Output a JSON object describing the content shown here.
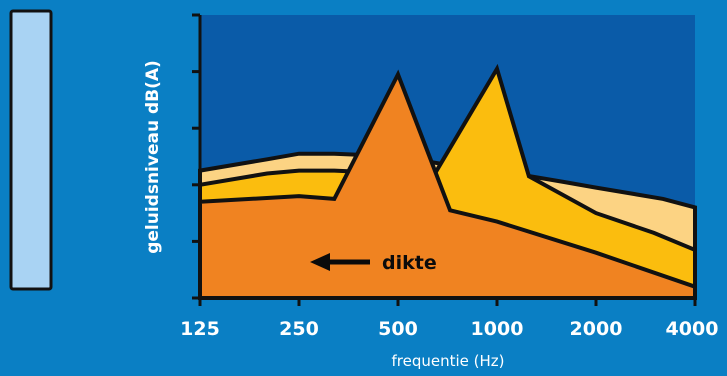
{
  "chart_data": {
    "type": "area",
    "title": "",
    "xlabel": "frequentie (Hz)",
    "ylabel": "geluidsniveau dB(A)",
    "categories": [
      "125",
      "250",
      "500",
      "1000",
      "2000",
      "4000"
    ],
    "ylim": [
      0,
      5
    ],
    "grid": false,
    "series": [
      {
        "x": [
          125,
          200,
          250,
          320,
          500,
          800,
          1000,
          1600,
          2000,
          3200,
          4000
        ],
        "values": [
          2.25,
          2.45,
          2.55,
          2.55,
          2.5,
          2.3,
          2.25,
          2.05,
          1.95,
          1.75,
          1.6
        ]
      },
      {
        "x": [
          125,
          200,
          250,
          320,
          500,
          640,
          1000,
          1250,
          2000,
          3000,
          4000
        ],
        "values": [
          2.0,
          2.2,
          2.25,
          2.25,
          2.2,
          2.15,
          4.05,
          2.15,
          1.5,
          1.15,
          0.85
        ]
      },
      {
        "x": [
          125,
          250,
          320,
          500,
          720,
          1000,
          2000,
          4000
        ],
        "values": [
          1.7,
          1.8,
          1.75,
          3.95,
          1.55,
          1.35,
          0.8,
          0.2
        ]
      }
    ],
    "annotations": [
      {
        "text": "dikte"
      }
    ],
    "colors": {
      "background": "#0a7fc4",
      "plot_background": "#0a5ba8",
      "series": [
        "#fcd383",
        "#fbbd0e",
        "#f08321"
      ],
      "outline": "#111111",
      "sample_block": "#a9d3f3",
      "axis": "#111111"
    }
  }
}
